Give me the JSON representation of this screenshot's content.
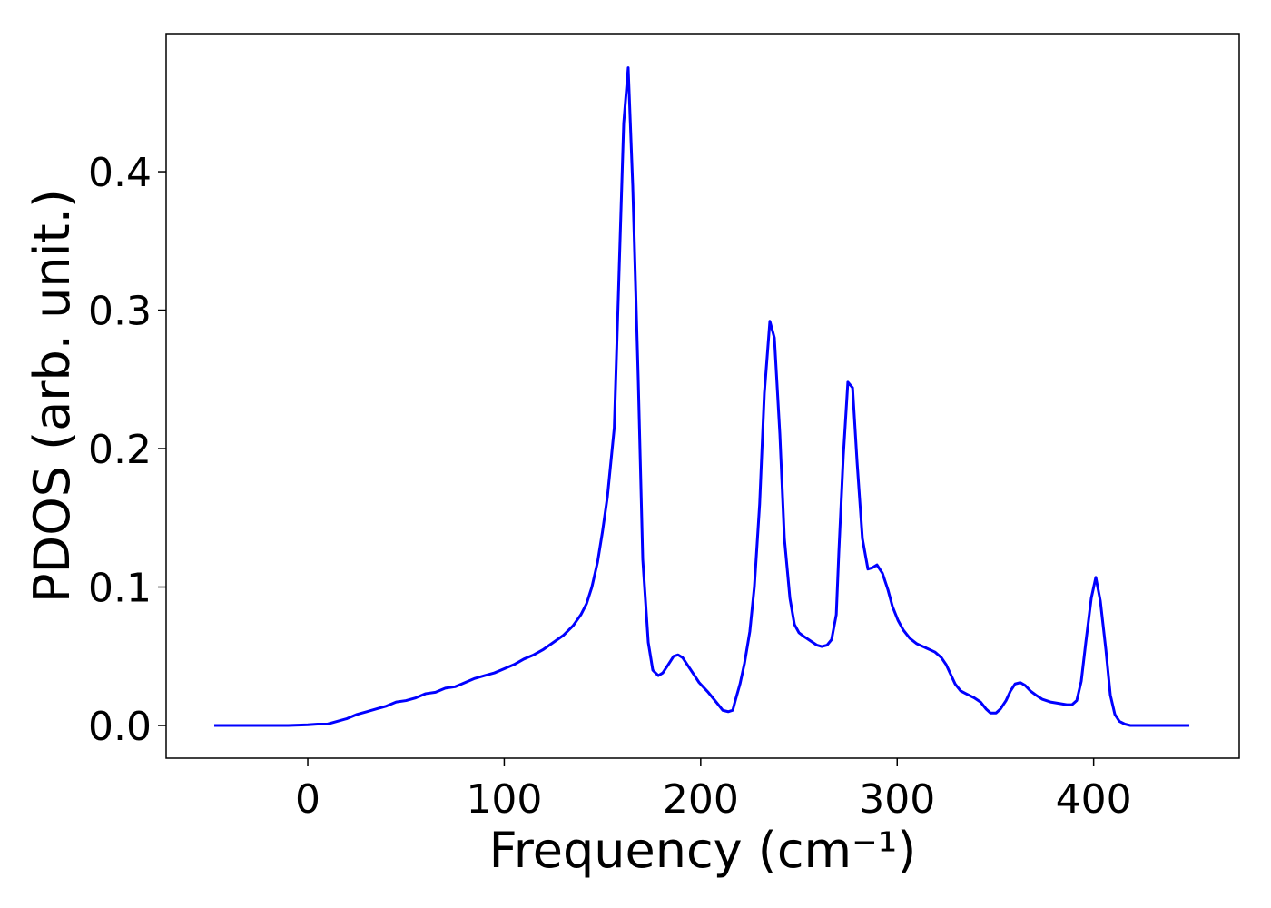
{
  "chart_data": {
    "type": "line",
    "xlabel": "Frequency (cm⁻¹)",
    "ylabel": "PDOS (arb. unit.)",
    "color": "#0000ff",
    "xlim": [
      -72.1,
      474.1
    ],
    "ylim": [
      -0.0236,
      0.4997
    ],
    "xticks": [
      0,
      100,
      200,
      300,
      400
    ],
    "yticks": [
      {
        "value": 0,
        "label": "0.0"
      },
      0.1,
      0.2,
      0.3,
      0.4
    ],
    "grid": false,
    "x": [
      -47.6,
      -10,
      0,
      5,
      10,
      15,
      20,
      25,
      30,
      35,
      40,
      45,
      50,
      55,
      60,
      65,
      70,
      75,
      80,
      85,
      90,
      95,
      100,
      105,
      110,
      115,
      120,
      125,
      130,
      135,
      139,
      141.9,
      144.6,
      147.5,
      150,
      152.5,
      156,
      158.5,
      160.8,
      163.1,
      165.4,
      168.2,
      170.5,
      173.3,
      175.6,
      178.4,
      180.7,
      183.5,
      186.2,
      188.5,
      190.8,
      193.6,
      196.4,
      199.2,
      203.8,
      208.4,
      211.2,
      214,
      216.3,
      217.6,
      220,
      222.3,
      225,
      227.3,
      230,
      232.4,
      235.2,
      237.5,
      240.3,
      242.6,
      245.4,
      247.7,
      250,
      252.8,
      256,
      259.2,
      261.6,
      264.3,
      266.6,
      269,
      270.3,
      272.6,
      274.9,
      277.3,
      279.6,
      282.3,
      285.1,
      287.4,
      289.7,
      292.5,
      295.3,
      297.6,
      300.4,
      303.1,
      306.4,
      310,
      314.7,
      319.3,
      322.5,
      324.9,
      327.2,
      329.5,
      332.3,
      335,
      339.2,
      342.4,
      345.2,
      347.5,
      350.3,
      352.6,
      355.4,
      357.7,
      360,
      362.7,
      365.1,
      367.8,
      370.6,
      373.8,
      378,
      382.2,
      386.3,
      389,
      391.4,
      393.7,
      396,
      398.8,
      401.1,
      403.4,
      406.2,
      408.5,
      410.8,
      413.1,
      415.9,
      418.7,
      448.7
    ],
    "y": [
      0,
      0,
      0.0005,
      0.001,
      0.001,
      0.003,
      0.005,
      0.008,
      0.01,
      0.012,
      0.014,
      0.017,
      0.018,
      0.02,
      0.023,
      0.024,
      0.027,
      0.028,
      0.031,
      0.034,
      0.036,
      0.038,
      0.041,
      0.044,
      0.048,
      0.051,
      0.055,
      0.06,
      0.065,
      0.072,
      0.08,
      0.088,
      0.1,
      0.118,
      0.14,
      0.165,
      0.215,
      0.33,
      0.435,
      0.475,
      0.39,
      0.25,
      0.12,
      0.06,
      0.04,
      0.036,
      0.038,
      0.044,
      0.05,
      0.051,
      0.049,
      0.043,
      0.037,
      0.031,
      0.024,
      0.016,
      0.011,
      0.01,
      0.011,
      0.018,
      0.03,
      0.045,
      0.068,
      0.1,
      0.16,
      0.24,
      0.292,
      0.28,
      0.21,
      0.135,
      0.092,
      0.073,
      0.067,
      0.064,
      0.061,
      0.058,
      0.057,
      0.058,
      0.062,
      0.08,
      0.125,
      0.195,
      0.248,
      0.244,
      0.19,
      0.135,
      0.113,
      0.114,
      0.116,
      0.11,
      0.098,
      0.086,
      0.076,
      0.069,
      0.063,
      0.059,
      0.056,
      0.053,
      0.049,
      0.044,
      0.037,
      0.03,
      0.025,
      0.023,
      0.02,
      0.017,
      0.012,
      0.009,
      0.009,
      0.012,
      0.018,
      0.025,
      0.03,
      0.031,
      0.029,
      0.025,
      0.022,
      0.019,
      0.017,
      0.016,
      0.015,
      0.015,
      0.018,
      0.032,
      0.06,
      0.092,
      0.107,
      0.09,
      0.055,
      0.022,
      0.008,
      0.003,
      0.001,
      0,
      0
    ]
  }
}
